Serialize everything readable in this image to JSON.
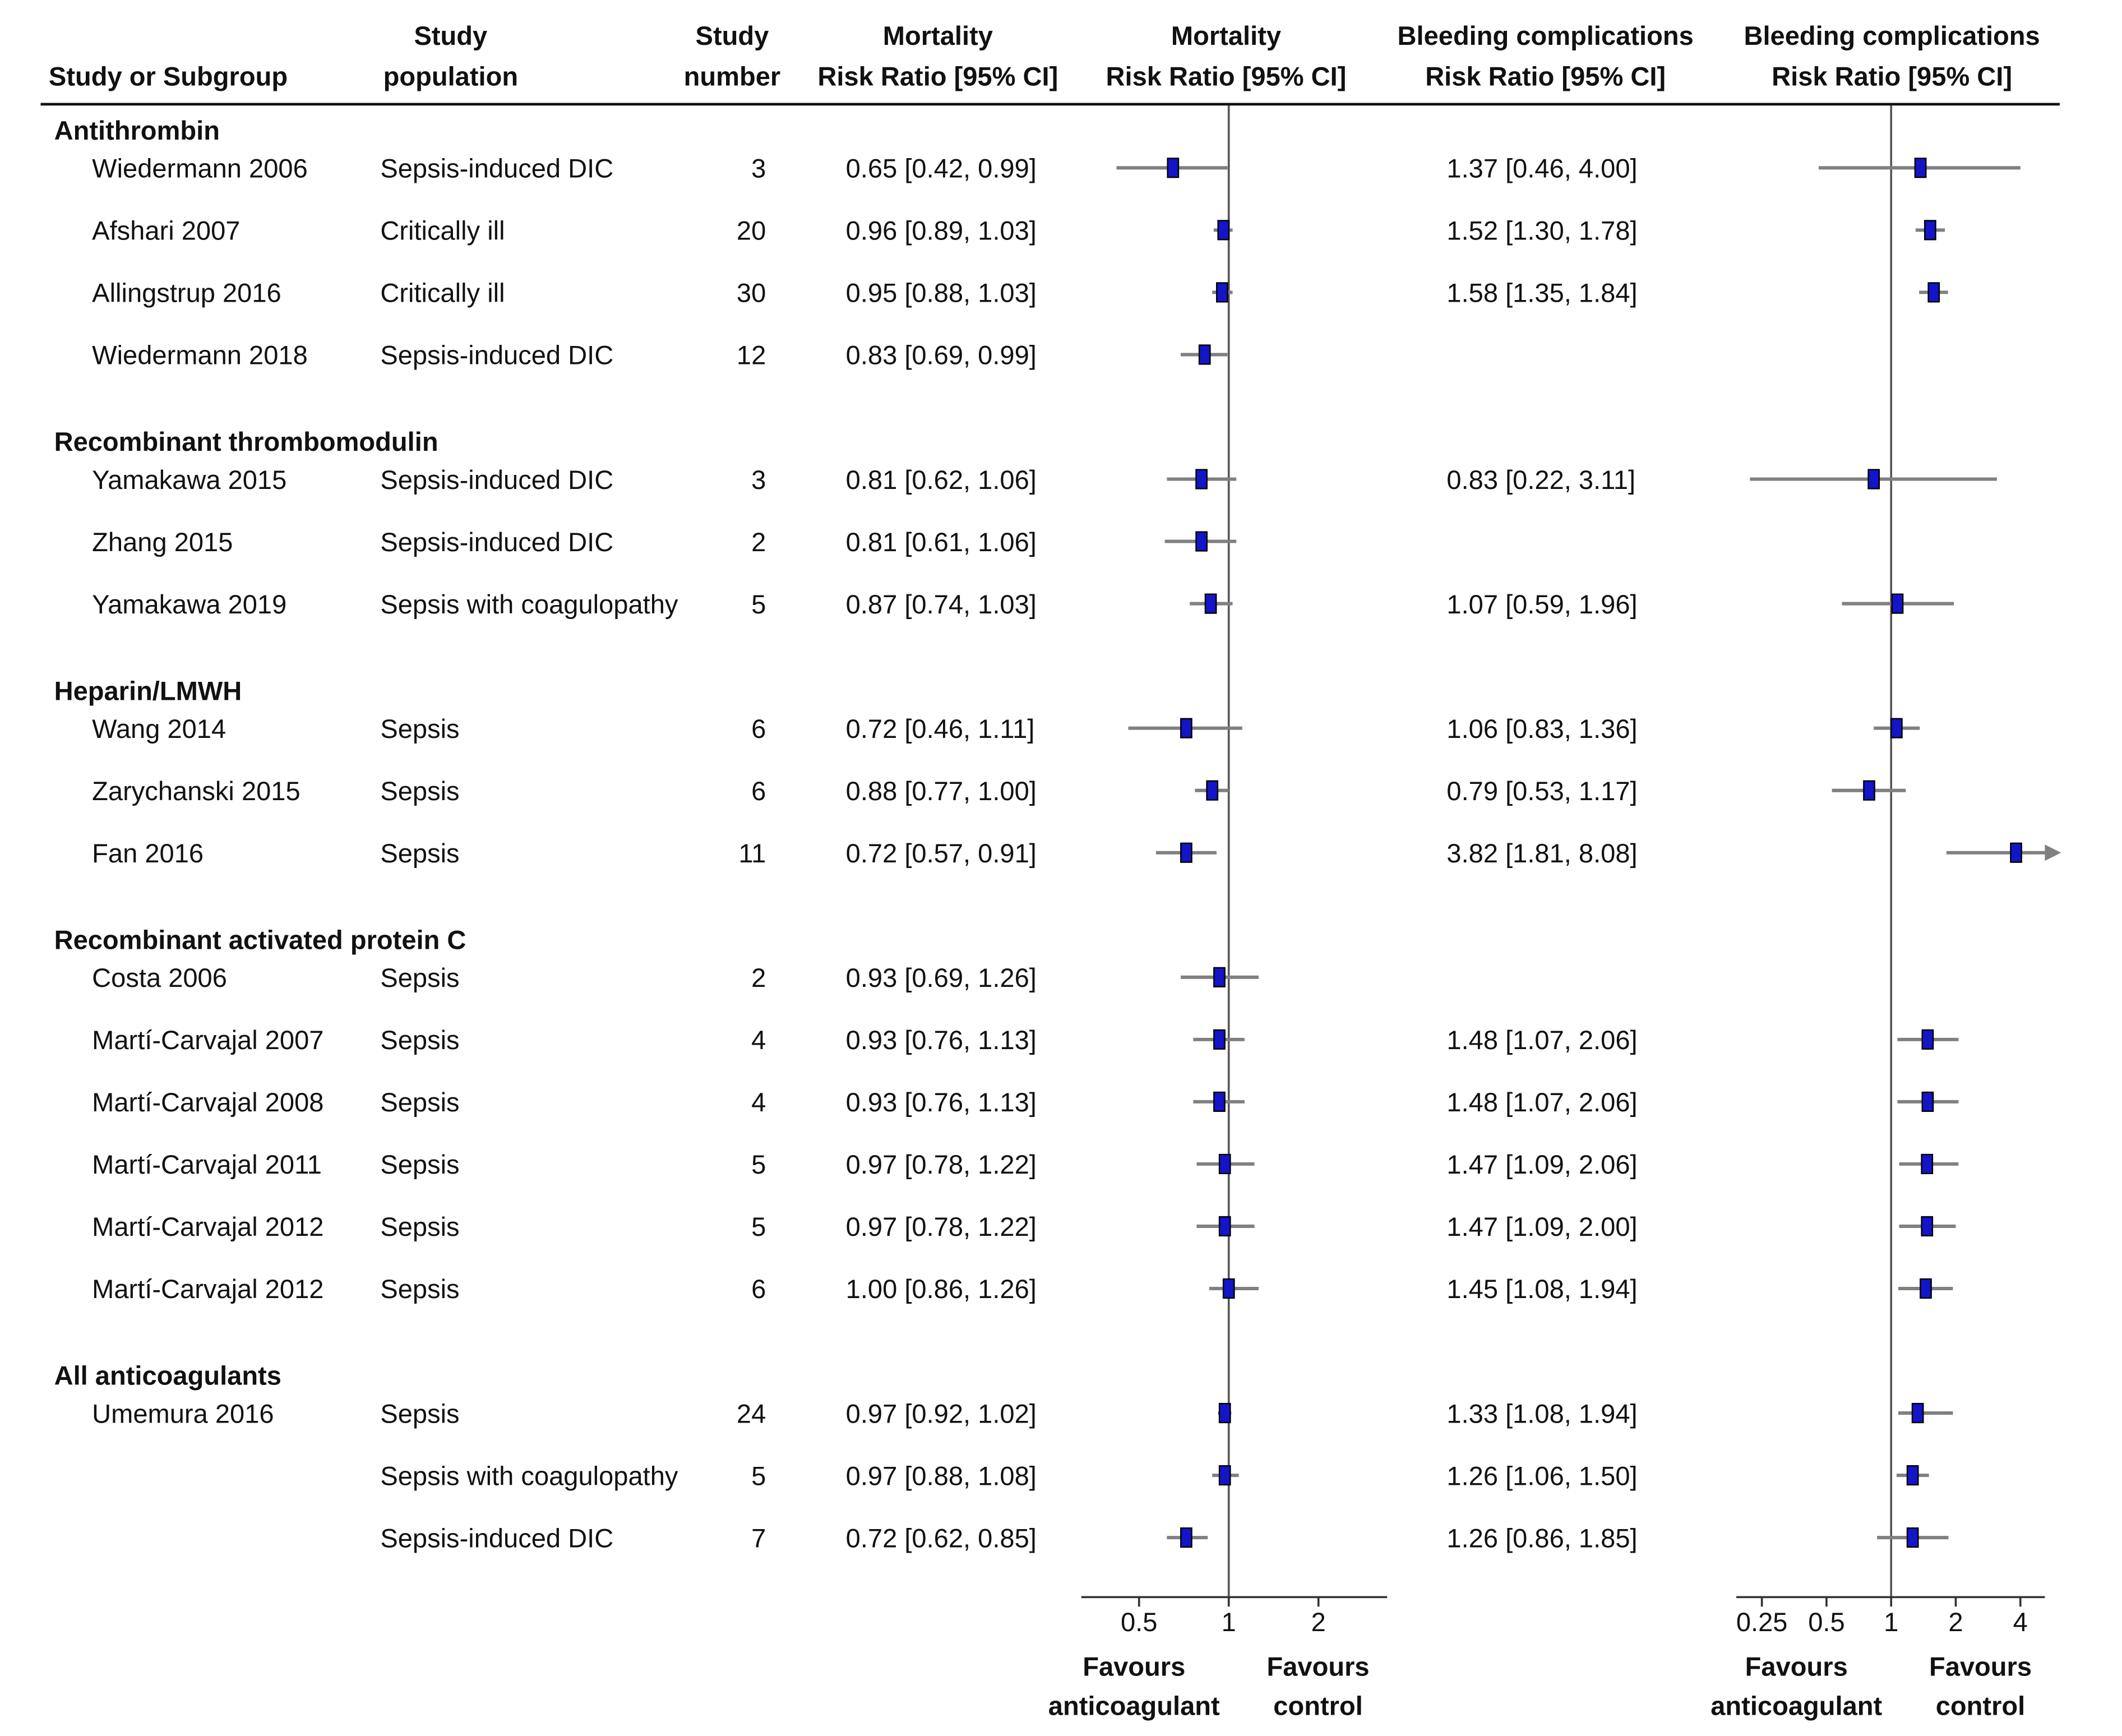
{
  "chart_data": {
    "type": "forest",
    "headers": {
      "study": [
        "Study or Subgroup"
      ],
      "population": [
        "Study",
        "population"
      ],
      "number": [
        "Study",
        "number"
      ],
      "mortality_text": [
        "Mortality",
        "Risk Ratio [95% CI]"
      ],
      "mortality_plot": [
        "Mortality",
        "Risk Ratio [95% CI]"
      ],
      "bleeding_text": [
        "Bleeding complications",
        "Risk Ratio [95% CI]"
      ],
      "bleeding_plot": [
        "Bleeding complications",
        "Risk Ratio [95% CI]"
      ]
    },
    "groups": [
      {
        "name": "Antithrombin",
        "rows": [
          {
            "study": "Wiedermann 2006",
            "population": "Sepsis-induced DIC",
            "n": 3,
            "mortality": {
              "rr": 0.65,
              "lo": 0.42,
              "hi": 0.99,
              "label": "0.65 [0.42, 0.99]"
            },
            "bleeding": {
              "rr": 1.37,
              "lo": 0.46,
              "hi": 4,
              "label": "1.37 [0.46, 4.00]"
            }
          },
          {
            "study": "Afshari 2007",
            "population": "Critically ill",
            "n": 20,
            "mortality": {
              "rr": 0.96,
              "lo": 0.89,
              "hi": 1.03,
              "label": "0.96 [0.89, 1.03]"
            },
            "bleeding": {
              "rr": 1.52,
              "lo": 1.3,
              "hi": 1.78,
              "label": "1.52 [1.30, 1.78]"
            }
          },
          {
            "study": "Allingstrup 2016",
            "population": "Critically ill",
            "n": 30,
            "mortality": {
              "rr": 0.95,
              "lo": 0.88,
              "hi": 1.03,
              "label": "0.95 [0.88, 1.03]"
            },
            "bleeding": {
              "rr": 1.58,
              "lo": 1.35,
              "hi": 1.84,
              "label": "1.58 [1.35, 1.84]"
            }
          },
          {
            "study": "Wiedermann 2018",
            "population": "Sepsis-induced DIC",
            "n": 12,
            "mortality": {
              "rr": 0.83,
              "lo": 0.69,
              "hi": 0.99,
              "label": "0.83 [0.69, 0.99]"
            },
            "bleeding": null
          }
        ]
      },
      {
        "name": "Recombinant thrombomodulin",
        "rows": [
          {
            "study": "Yamakawa 2015",
            "population": "Sepsis-induced DIC",
            "n": 3,
            "mortality": {
              "rr": 0.81,
              "lo": 0.62,
              "hi": 1.06,
              "label": "0.81 [0.62, 1.06]"
            },
            "bleeding": {
              "rr": 0.83,
              "lo": 0.22,
              "hi": 3.11,
              "label": "0.83 [0.22, 3.11]"
            }
          },
          {
            "study": "Zhang 2015",
            "population": "Sepsis-induced DIC",
            "n": 2,
            "mortality": {
              "rr": 0.81,
              "lo": 0.61,
              "hi": 1.06,
              "label": "0.81 [0.61, 1.06]"
            },
            "bleeding": null
          },
          {
            "study": "Yamakawa 2019",
            "population": "Sepsis with coagulopathy",
            "n": 5,
            "mortality": {
              "rr": 0.87,
              "lo": 0.74,
              "hi": 1.03,
              "label": "0.87 [0.74, 1.03]"
            },
            "bleeding": {
              "rr": 1.07,
              "lo": 0.59,
              "hi": 1.96,
              "label": "1.07 [0.59, 1.96]"
            }
          }
        ]
      },
      {
        "name": "Heparin/LMWH",
        "rows": [
          {
            "study": "Wang 2014",
            "population": "Sepsis",
            "n": 6,
            "mortality": {
              "rr": 0.72,
              "lo": 0.46,
              "hi": 1.11,
              "label": "0.72 [0.46, 1.11]"
            },
            "bleeding": {
              "rr": 1.06,
              "lo": 0.83,
              "hi": 1.36,
              "label": "1.06 [0.83, 1.36]"
            }
          },
          {
            "study": "Zarychanski 2015",
            "population": "Sepsis",
            "n": 6,
            "mortality": {
              "rr": 0.88,
              "lo": 0.77,
              "hi": 1,
              "label": "0.88 [0.77, 1.00]"
            },
            "bleeding": {
              "rr": 0.79,
              "lo": 0.53,
              "hi": 1.17,
              "label": "0.79 [0.53, 1.17]"
            }
          },
          {
            "study": "Fan 2016",
            "population": "Sepsis",
            "n": 11,
            "mortality": {
              "rr": 0.72,
              "lo": 0.57,
              "hi": 0.91,
              "label": "0.72 [0.57, 0.91]"
            },
            "bleeding": {
              "rr": 3.82,
              "lo": 1.81,
              "hi": 8.08,
              "label": "3.82 [1.81, 8.08]"
            }
          }
        ]
      },
      {
        "name": "Recombinant activated protein C",
        "rows": [
          {
            "study": "Costa 2006",
            "population": "Sepsis",
            "n": 2,
            "mortality": {
              "rr": 0.93,
              "lo": 0.69,
              "hi": 1.26,
              "label": "0.93 [0.69, 1.26]"
            },
            "bleeding": null
          },
          {
            "study": "Martí-Carvajal 2007",
            "population": "Sepsis",
            "n": 4,
            "mortality": {
              "rr": 0.93,
              "lo": 0.76,
              "hi": 1.13,
              "label": "0.93 [0.76, 1.13]"
            },
            "bleeding": {
              "rr": 1.48,
              "lo": 1.07,
              "hi": 2.06,
              "label": "1.48 [1.07, 2.06]"
            }
          },
          {
            "study": "Martí-Carvajal 2008",
            "population": "Sepsis",
            "n": 4,
            "mortality": {
              "rr": 0.93,
              "lo": 0.76,
              "hi": 1.13,
              "label": "0.93 [0.76, 1.13]"
            },
            "bleeding": {
              "rr": 1.48,
              "lo": 1.07,
              "hi": 2.06,
              "label": "1.48 [1.07, 2.06]"
            }
          },
          {
            "study": "Martí-Carvajal 2011",
            "population": "Sepsis",
            "n": 5,
            "mortality": {
              "rr": 0.97,
              "lo": 0.78,
              "hi": 1.22,
              "label": "0.97 [0.78, 1.22]"
            },
            "bleeding": {
              "rr": 1.47,
              "lo": 1.09,
              "hi": 2.06,
              "label": "1.47 [1.09, 2.06]"
            }
          },
          {
            "study": "Martí-Carvajal 2012",
            "population": "Sepsis",
            "n": 5,
            "mortality": {
              "rr": 0.97,
              "lo": 0.78,
              "hi": 1.22,
              "label": "0.97 [0.78, 1.22]"
            },
            "bleeding": {
              "rr": 1.47,
              "lo": 1.09,
              "hi": 2,
              "label": "1.47 [1.09, 2.00]"
            }
          },
          {
            "study": "Martí-Carvajal 2012",
            "population": "Sepsis",
            "n": 6,
            "mortality": {
              "rr": 1,
              "lo": 0.86,
              "hi": 1.26,
              "label": "1.00 [0.86, 1.26]"
            },
            "bleeding": {
              "rr": 1.45,
              "lo": 1.08,
              "hi": 1.94,
              "label": "1.45 [1.08, 1.94]"
            }
          }
        ]
      },
      {
        "name": "All anticoagulants",
        "rows": [
          {
            "study": "Umemura 2016",
            "population": "Sepsis",
            "n": 24,
            "mortality": {
              "rr": 0.97,
              "lo": 0.92,
              "hi": 1.02,
              "label": "0.97 [0.92, 1.02]"
            },
            "bleeding": {
              "rr": 1.33,
              "lo": 1.08,
              "hi": 1.94,
              "label": "1.33 [1.08, 1.94]"
            }
          },
          {
            "study": null,
            "population": "Sepsis with coagulopathy",
            "n": 5,
            "mortality": {
              "rr": 0.97,
              "lo": 0.88,
              "hi": 1.08,
              "label": "0.97 [0.88, 1.08]"
            },
            "bleeding": {
              "rr": 1.26,
              "lo": 1.06,
              "hi": 1.5,
              "label": "1.26 [1.06, 1.50]"
            }
          },
          {
            "study": null,
            "population": "Sepsis-induced DIC",
            "n": 7,
            "mortality": {
              "rr": 0.72,
              "lo": 0.62,
              "hi": 0.85,
              "label": "0.72 [0.62, 0.85]"
            },
            "bleeding": {
              "rr": 1.26,
              "lo": 0.86,
              "hi": 1.85,
              "label": "1.26 [0.86, 1.85]"
            }
          }
        ]
      }
    ],
    "mortality_axis": {
      "log_scale": true,
      "xlim": [
        0.32,
        3.4
      ],
      "xticks": [
        0.5,
        1,
        2
      ],
      "reference": 1,
      "favours_left": [
        "Favours",
        "anticoagulant"
      ],
      "favours_right": [
        "Favours",
        "control"
      ]
    },
    "bleeding_axis": {
      "log_scale": true,
      "xlim": [
        0.19,
        5.2
      ],
      "xticks": [
        0.25,
        0.5,
        1,
        2,
        4
      ],
      "reference": 1,
      "favours_left": [
        "Favours",
        "anticoagulant"
      ],
      "favours_right": [
        "Favours",
        "control"
      ]
    },
    "marker_color": "#1414c8",
    "ci_color": "#808080"
  }
}
